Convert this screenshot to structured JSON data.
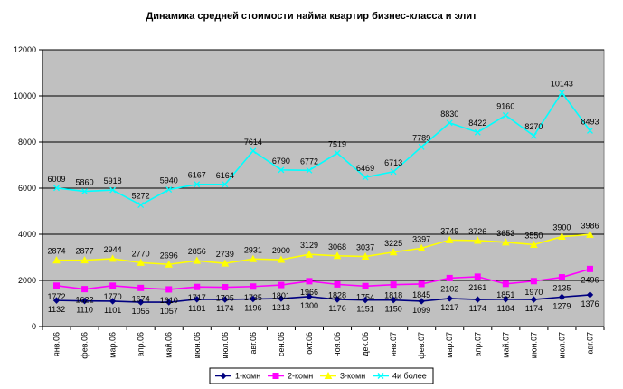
{
  "chart_data": {
    "type": "line",
    "title": "Динамика средней стоимости найма квартир бизнес-класса и элит",
    "xlabel": "",
    "ylabel": "",
    "ylim": [
      0,
      12000
    ],
    "yticks": [
      "0",
      "2000",
      "4000",
      "6000",
      "8000",
      "10000",
      "12000"
    ],
    "grid": true,
    "legend_position": "bottom",
    "plot_background": "#c0c0c0",
    "categories": [
      "янв.06",
      "фев.06",
      "мар.06",
      "апр.06",
      "май.06",
      "июн.06",
      "июл.06",
      "авг.06",
      "сен.06",
      "окт.06",
      "ноя.06",
      "дек.06",
      "янв.07",
      "фев.07",
      "мар.07",
      "апр.07",
      "май.07",
      "июн.07",
      "июл.07",
      "авг.07"
    ],
    "series": [
      {
        "name": "1-комн",
        "color": "#000080",
        "marker": "diamond",
        "values": [
          1132,
          1110,
          1101,
          1055,
          1057,
          1181,
          1174,
          1196,
          1213,
          1300,
          1176,
          1151,
          1150,
          1099,
          1217,
          1174,
          1184,
          1174,
          1279,
          1376
        ]
      },
      {
        "name": "2-комн",
        "color": "#ff00ff",
        "marker": "square",
        "values": [
          1772,
          1622,
          1770,
          1674,
          1610,
          1717,
          1705,
          1735,
          1801,
          1966,
          1828,
          1754,
          1818,
          1845,
          2102,
          2161,
          1851,
          1970,
          2135,
          2496
        ]
      },
      {
        "name": "3-комн",
        "color": "#ffff00",
        "marker": "triangle",
        "values": [
          2874,
          2877,
          2944,
          2770,
          2696,
          2856,
          2739,
          2931,
          2900,
          3129,
          3068,
          3037,
          3225,
          3397,
          3749,
          3726,
          3653,
          3550,
          3900,
          3986
        ]
      },
      {
        "name": "4и более",
        "color": "#00ffff",
        "marker": "x",
        "values": [
          6009,
          5860,
          5918,
          5272,
          5940,
          6167,
          6164,
          7614,
          6790,
          6772,
          7519,
          6469,
          6713,
          7789,
          8830,
          8422,
          9160,
          8270,
          10143,
          8493
        ]
      }
    ]
  }
}
